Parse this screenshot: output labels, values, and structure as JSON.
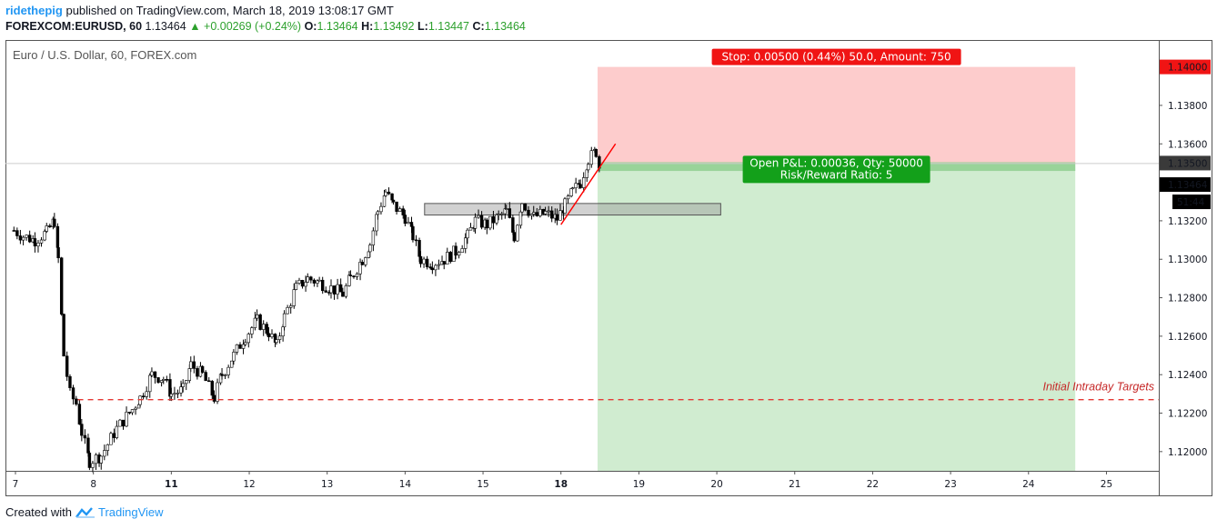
{
  "header": {
    "user": "ridethepig",
    "published": "published on TradingView.com, March 18, 2019 13:08:17 GMT",
    "symbol": "FOREXCOM:EURUSD, 60",
    "price": "1.13464",
    "change": "+0.00269 (+0.24%)",
    "o_label": "O:",
    "o": "1.13464",
    "h_label": "H:",
    "h": "1.13492",
    "l_label": "L:",
    "l": "1.13447",
    "c_label": "C:",
    "c": "1.13464"
  },
  "footer": {
    "created_with": "Created with",
    "brand": "TradingView"
  },
  "colors": {
    "up": "#2ca02c",
    "stop_zone": "#fdcccc",
    "target_zone": "#d0ecd0",
    "badge_red": "#f01414",
    "badge_green": "#13a01a",
    "price_line": "#131722",
    "target_line": "#e53935",
    "trend_line": "#ff0000"
  },
  "chart_data": {
    "type": "candlestick",
    "title": "Euro / U.S. Dollar, 60, FOREX.com",
    "ylim": [
      1.119,
      1.1414
    ],
    "x_ticks": [
      {
        "label": "7",
        "x": 7.0,
        "bold": false
      },
      {
        "label": "8",
        "x": 8.0,
        "bold": false
      },
      {
        "label": "11",
        "x": 9.0,
        "bold": true
      },
      {
        "label": "12",
        "x": 10.0,
        "bold": false
      },
      {
        "label": "13",
        "x": 11.0,
        "bold": false
      },
      {
        "label": "14",
        "x": 12.0,
        "bold": false
      },
      {
        "label": "15",
        "x": 13.0,
        "bold": false
      },
      {
        "label": "18",
        "x": 14.0,
        "bold": true
      },
      {
        "label": "19",
        "x": 15.0,
        "bold": false
      },
      {
        "label": "20",
        "x": 16.0,
        "bold": false
      },
      {
        "label": "21",
        "x": 17.0,
        "bold": false
      },
      {
        "label": "22",
        "x": 18.0,
        "bold": false
      },
      {
        "label": "23",
        "x": 19.0,
        "bold": false
      },
      {
        "label": "24",
        "x": 20.0,
        "bold": false
      },
      {
        "label": "25",
        "x": 21.0,
        "bold": false
      }
    ],
    "y_ticks": [
      "1.13800",
      "1.13600",
      "1.13200",
      "1.13000",
      "1.12800",
      "1.12600",
      "1.12400",
      "1.12200",
      "1.12000"
    ],
    "price_series": [
      [
        6.98,
        1.1315
      ],
      [
        7.1,
        1.1312
      ],
      [
        7.25,
        1.131
      ],
      [
        7.4,
        1.1314
      ],
      [
        7.5,
        1.132
      ],
      [
        7.55,
        1.13
      ],
      [
        7.62,
        1.125
      ],
      [
        7.7,
        1.123
      ],
      [
        7.78,
        1.1225
      ],
      [
        7.85,
        1.121
      ],
      [
        7.95,
        1.1195
      ],
      [
        8.1,
        1.1198
      ],
      [
        8.3,
        1.1212
      ],
      [
        8.5,
        1.1222
      ],
      [
        8.6,
        1.1228
      ],
      [
        8.75,
        1.124
      ],
      [
        8.9,
        1.1238
      ],
      [
        9.0,
        1.123
      ],
      [
        9.15,
        1.1232
      ],
      [
        9.25,
        1.1245
      ],
      [
        9.4,
        1.124
      ],
      [
        9.55,
        1.1228
      ],
      [
        9.65,
        1.124
      ],
      [
        9.8,
        1.125
      ],
      [
        9.95,
        1.126
      ],
      [
        10.1,
        1.1268
      ],
      [
        10.25,
        1.1262
      ],
      [
        10.35,
        1.1255
      ],
      [
        10.45,
        1.127
      ],
      [
        10.6,
        1.1285
      ],
      [
        10.75,
        1.129
      ],
      [
        10.9,
        1.1288
      ],
      [
        11.05,
        1.1285
      ],
      [
        11.2,
        1.1282
      ],
      [
        11.3,
        1.129
      ],
      [
        11.45,
        1.13
      ],
      [
        11.55,
        1.1308
      ],
      [
        11.65,
        1.1325
      ],
      [
        11.75,
        1.1335
      ],
      [
        11.85,
        1.1328
      ],
      [
        12.0,
        1.1322
      ],
      [
        12.1,
        1.1312
      ],
      [
        12.2,
        1.13
      ],
      [
        12.35,
        1.1298
      ],
      [
        12.5,
        1.13
      ],
      [
        12.65,
        1.1304
      ],
      [
        12.8,
        1.1312
      ],
      [
        12.9,
        1.132
      ],
      [
        13.05,
        1.1318
      ],
      [
        13.2,
        1.1322
      ],
      [
        13.3,
        1.1325
      ],
      [
        13.4,
        1.1312
      ],
      [
        13.5,
        1.133
      ],
      [
        13.65,
        1.1322
      ],
      [
        13.8,
        1.1324
      ],
      [
        13.95,
        1.1321
      ],
      [
        14.05,
        1.1328
      ],
      [
        14.15,
        1.1335
      ],
      [
        14.25,
        1.134
      ],
      [
        14.35,
        1.1352
      ],
      [
        14.45,
        1.1356
      ],
      [
        14.5,
        1.13464
      ]
    ],
    "current_price": {
      "label": "1.13464",
      "value": 1.13464
    },
    "countdown": "51:44",
    "position": {
      "entry": {
        "label": "1.13500",
        "value": 1.135
      },
      "stop": {
        "label": "1.14000",
        "value": 1.14
      },
      "target_value": 1.119,
      "start_x": 14.47,
      "end_x": 20.6,
      "stop_text": "Stop: 0.00500 (0.44%) 50.0, Amount: 750",
      "pnl_text": "Open P&L: 0.00036, Qty: 50000",
      "rr_text": "Risk/Reward Ratio: 5"
    },
    "annotations": {
      "intraday_target": {
        "text": "Initial Intraday Targets",
        "value": 1.1227
      },
      "resistance_box": {
        "x1": 12.25,
        "x2": 16.05,
        "y1": 1.1323,
        "y2": 1.1329
      },
      "trendline": {
        "x1": 14.0,
        "y1": 1.1318,
        "x2": 14.7,
        "y2": 1.136
      }
    }
  }
}
